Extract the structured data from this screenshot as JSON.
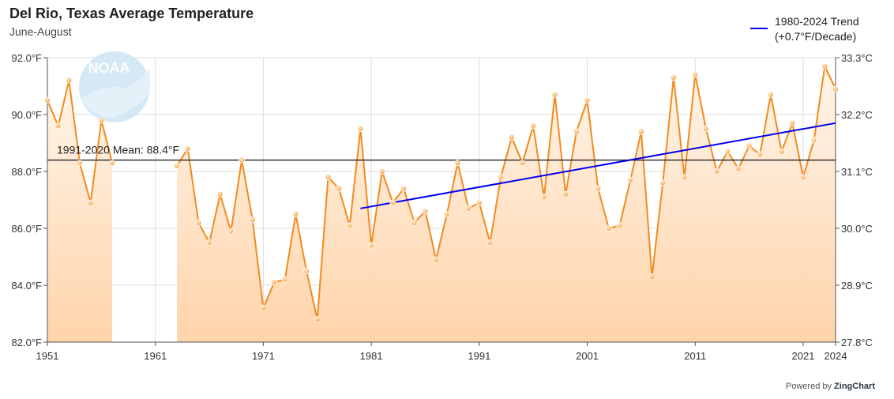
{
  "header": {
    "title": "Del Rio, Texas Average Temperature",
    "subtitle": "June-August"
  },
  "legend": {
    "line1": "1980-2024 Trend",
    "line2": "(+0.7°F/Decade)"
  },
  "footer": {
    "powered_by": "Powered by",
    "brand": "ZingChart"
  },
  "logo": {
    "text": "NOAA"
  },
  "colors": {
    "series": "#f28b1e",
    "area_top": "#fde5cc",
    "area_bottom": "#ffd3a8",
    "trend": "#0000ee",
    "mean": "#333333",
    "grid": "#dddddd"
  },
  "chart_data": {
    "type": "area",
    "title": "Del Rio, Texas Average Temperature",
    "subtitle": "June-August",
    "xlim": [
      1951,
      2024
    ],
    "ylim": [
      82.0,
      92.0
    ],
    "y_ticks": [
      "82.0°F",
      "84.0°F",
      "86.0°F",
      "88.0°F",
      "90.0°F",
      "92.0°F"
    ],
    "y_tick_values": [
      82,
      84,
      86,
      88,
      90,
      92
    ],
    "y2_ticks": [
      "27.8°C",
      "28.9°C",
      "30.0°C",
      "31.1°C",
      "32.2°C",
      "33.3°C"
    ],
    "x_ticks": [
      "1951",
      "1961",
      "1971",
      "1981",
      "1991",
      "2001",
      "2011",
      "2021",
      "2024"
    ],
    "x_tick_values": [
      1951,
      1961,
      1971,
      1981,
      1991,
      2001,
      2011,
      2021,
      2024
    ],
    "grid": true,
    "mean": {
      "label": "1991-2020 Mean: 88.4°F",
      "value": 88.4
    },
    "trend": {
      "name": "1980-2024 Trend (+0.7°F/Decade)",
      "x": [
        1980,
        2024
      ],
      "y": [
        86.7,
        89.7
      ]
    },
    "series": [
      {
        "x": [
          1951,
          1952,
          1953,
          1954,
          1955,
          1956,
          1957,
          1963,
          1964,
          1965,
          1966,
          1967,
          1968,
          1969,
          1970,
          1971,
          1972,
          1973,
          1974,
          1975,
          1976,
          1977,
          1978,
          1979,
          1980,
          1981,
          1982,
          1983,
          1984,
          1985,
          1986,
          1987,
          1988,
          1989,
          1990,
          1991,
          1992,
          1993,
          1994,
          1995,
          1996,
          1997,
          1998,
          1999,
          2000,
          2001,
          2002,
          2003,
          2004,
          2005,
          2006,
          2007,
          2008,
          2009,
          2010,
          2011,
          2012,
          2013,
          2014,
          2015,
          2016,
          2017,
          2018,
          2019,
          2020,
          2021,
          2022,
          2023,
          2024
        ],
        "values": [
          90.5,
          89.6,
          91.2,
          88.3,
          86.9,
          89.8,
          88.3,
          88.2,
          88.8,
          86.2,
          85.5,
          87.2,
          85.9,
          88.4,
          86.3,
          83.2,
          84.1,
          84.2,
          86.5,
          84.5,
          82.8,
          87.8,
          87.4,
          86.1,
          89.5,
          85.4,
          88.0,
          86.9,
          87.4,
          86.2,
          86.6,
          84.9,
          86.5,
          88.3,
          86.7,
          86.9,
          85.5,
          87.8,
          89.2,
          88.3,
          89.6,
          87.1,
          90.7,
          87.2,
          89.4,
          90.5,
          87.4,
          86.0,
          86.1,
          87.7,
          89.4,
          84.3,
          87.6,
          91.3,
          87.8,
          91.4,
          89.5,
          88.0,
          88.7,
          88.1,
          88.9,
          88.6,
          90.7,
          88.7,
          89.7,
          87.8,
          89.1,
          91.7,
          90.9
        ]
      }
    ]
  }
}
